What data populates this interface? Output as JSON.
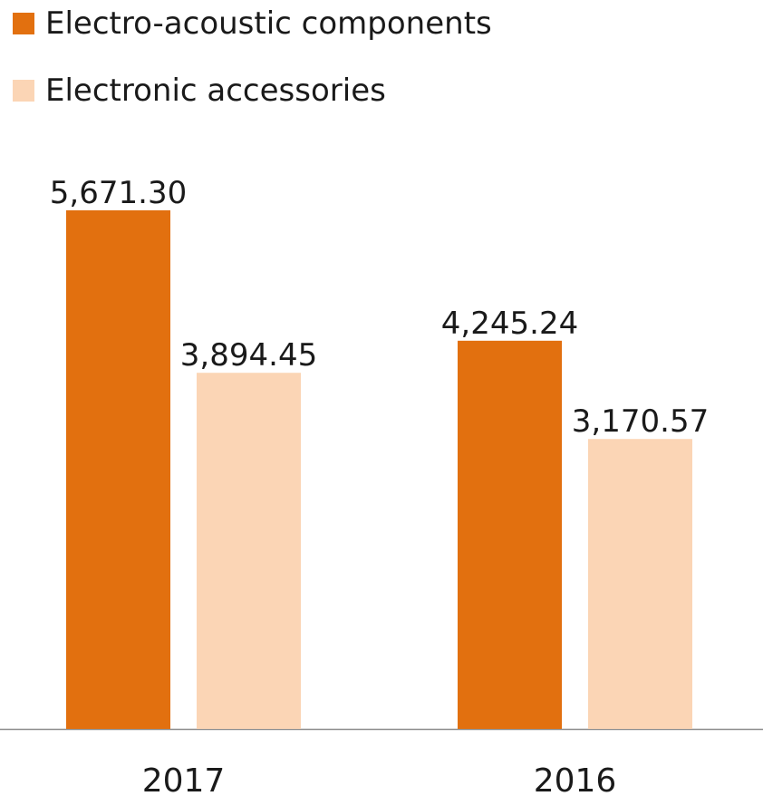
{
  "chart_data": {
    "type": "bar",
    "categories": [
      "2017",
      "2016"
    ],
    "series": [
      {
        "name": "Electro-acoustic components",
        "values": [
          5671.3,
          4245.24
        ],
        "labels": [
          "5,671.30",
          "4,245.24"
        ],
        "color": "#e2700f"
      },
      {
        "name": "Electronic accessories",
        "values": [
          3894.45,
          3170.57
        ],
        "labels": [
          "3,894.45",
          "3,170.57"
        ],
        "color": "#fbd5b5"
      }
    ],
    "ylim": [
      0,
      6000
    ],
    "grid": false,
    "legend_position": "top-left"
  }
}
